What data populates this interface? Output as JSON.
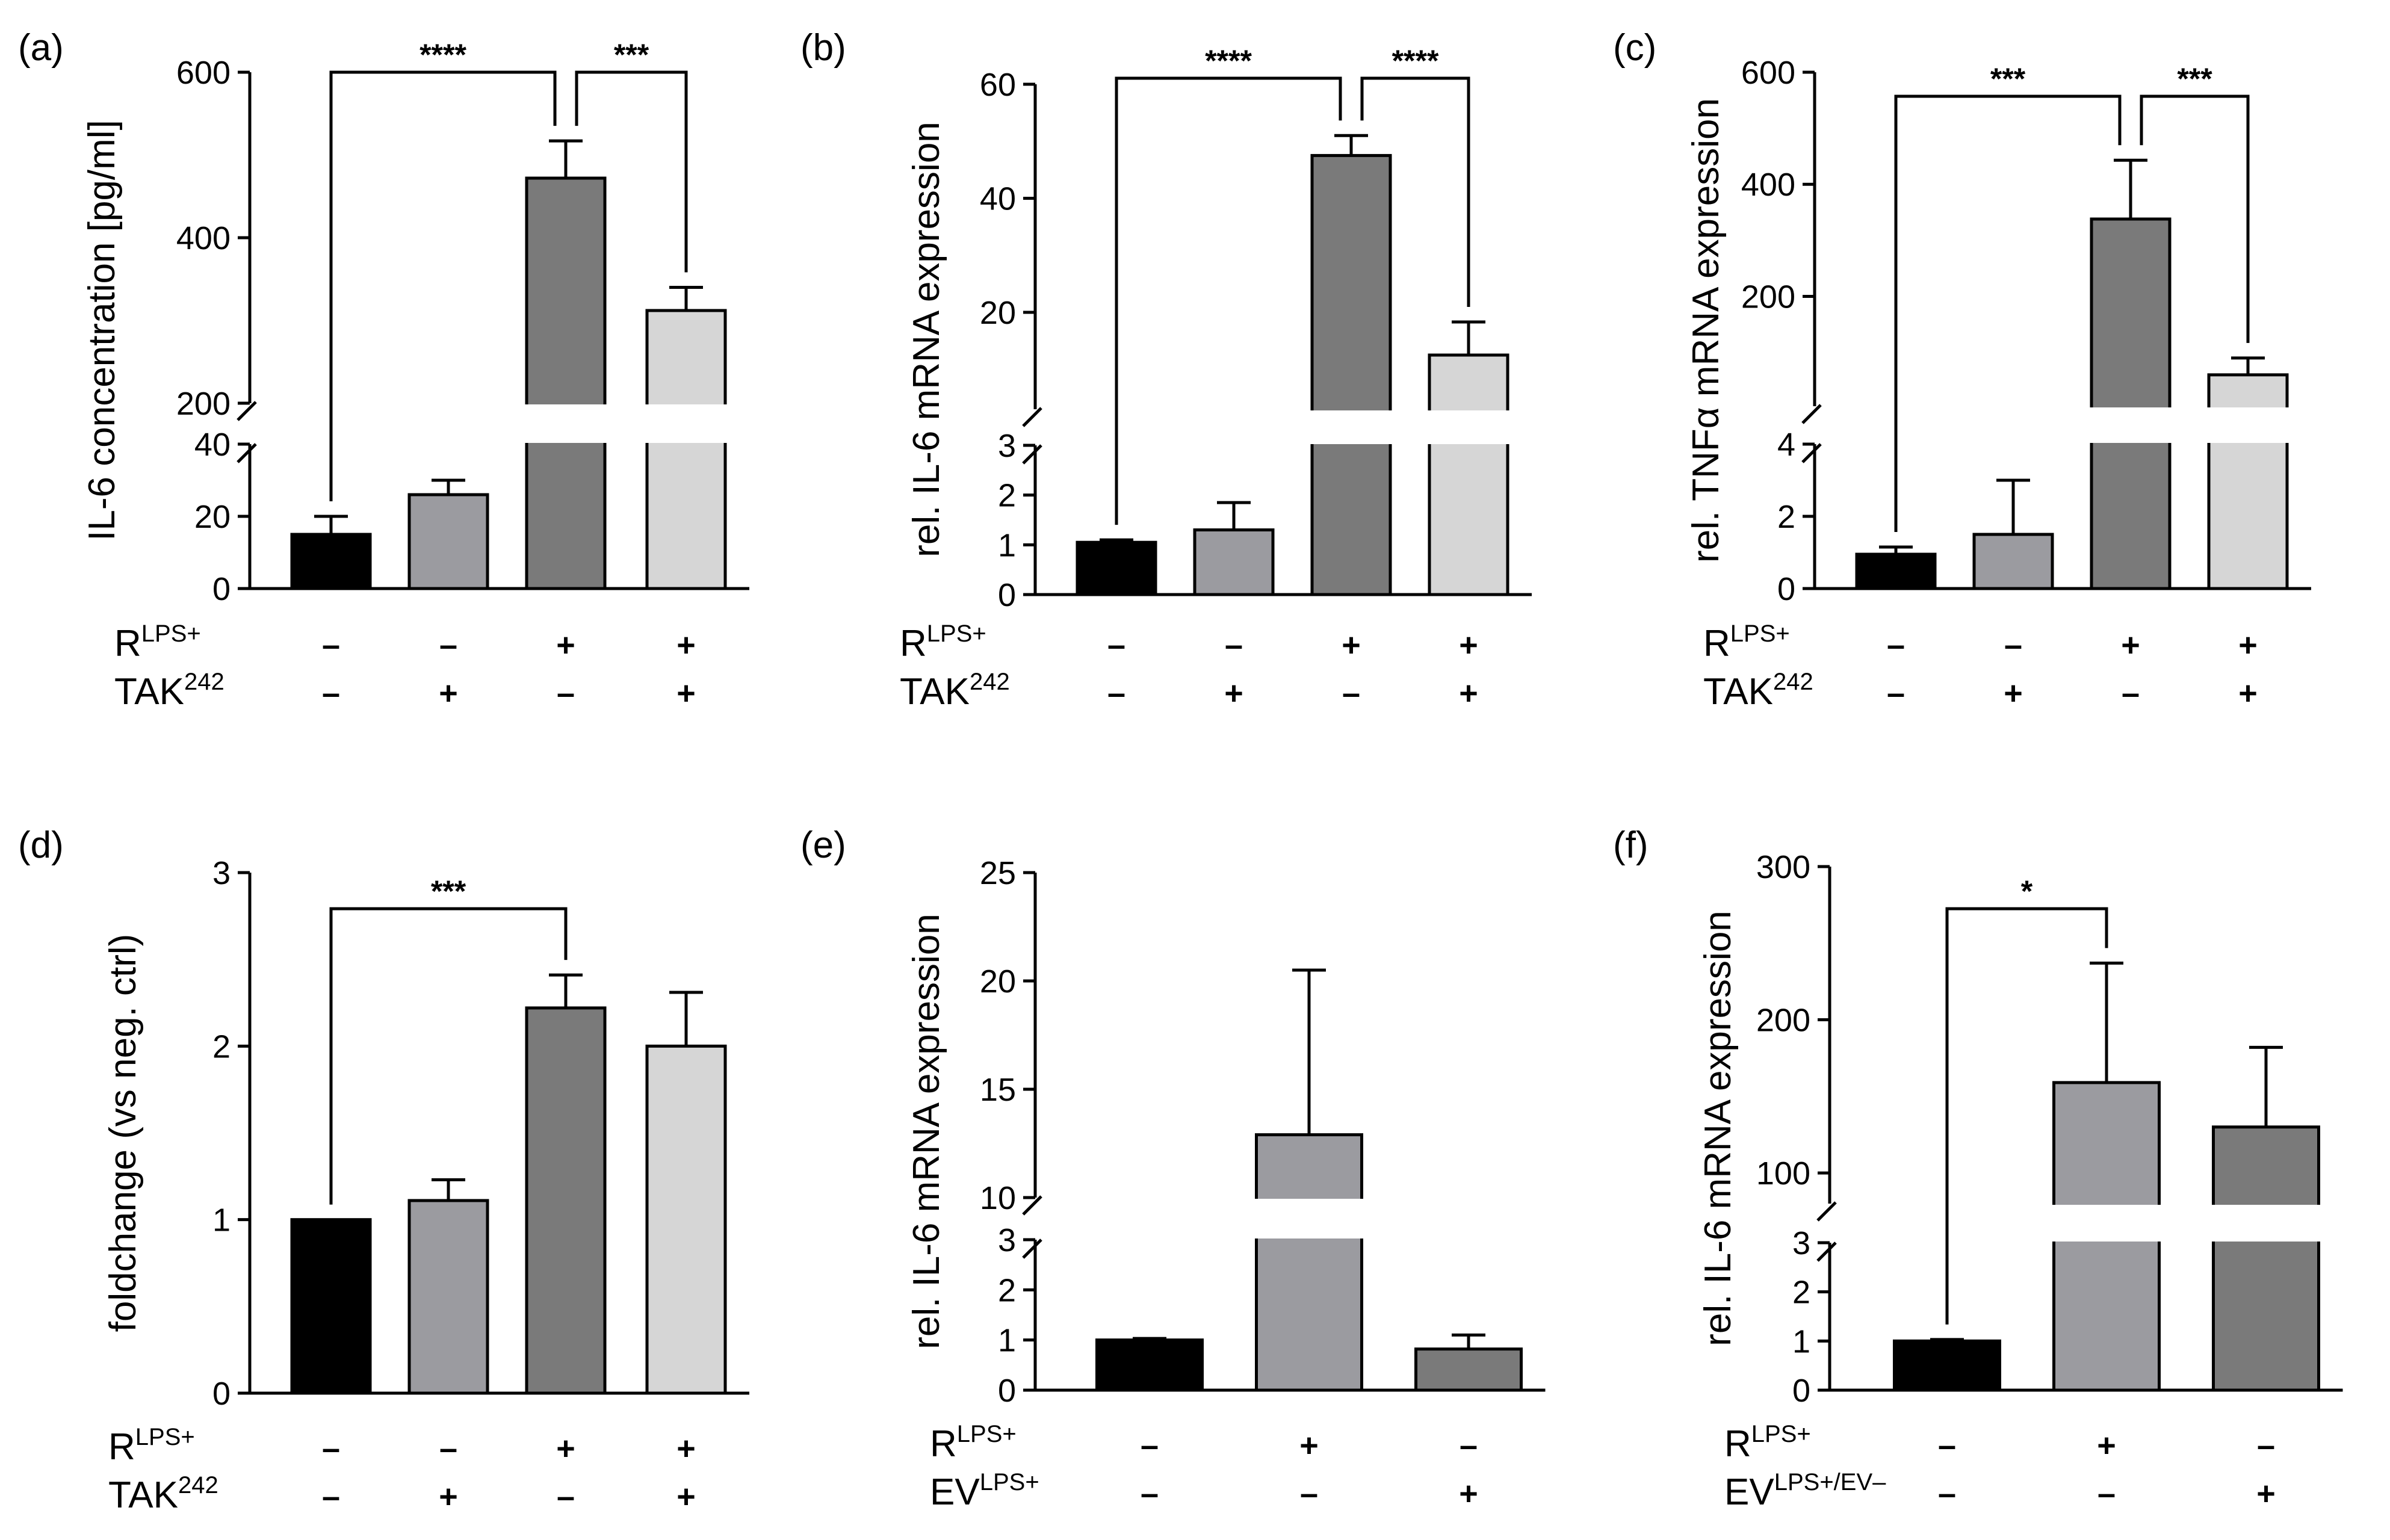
{
  "chart_data": [
    {
      "type": "bar",
      "panel": "(a)",
      "ylabel": "IL-6 concentration [pg/ml]",
      "axis_break": {
        "lower": [
          0,
          40
        ],
        "upper": [
          200,
          600
        ]
      },
      "lower_ticks": [
        "0",
        "20",
        "40"
      ],
      "upper_ticks": [
        "200",
        "400",
        "600"
      ],
      "bars": [
        {
          "value": 15,
          "error": 5,
          "color": "#000000"
        },
        {
          "value": 26,
          "error": 4,
          "color": "#9b9ba0"
        },
        {
          "value": 472,
          "error": 45,
          "color": "#7a7a7a"
        },
        {
          "value": 312,
          "error": 28,
          "color": "#d6d6d6"
        }
      ],
      "rows": [
        {
          "label": "R",
          "sup": "LPS+",
          "values": [
            "–",
            "–",
            "+",
            "+"
          ]
        },
        {
          "label": "TAK",
          "sup": "242",
          "values": [
            "–",
            "+",
            "–",
            "+"
          ]
        }
      ],
      "sig": [
        {
          "from": 0,
          "to": 2,
          "stars": "****"
        },
        {
          "from": 2,
          "to": 3,
          "stars": "***"
        }
      ]
    },
    {
      "type": "bar",
      "panel": "(b)",
      "ylabel": "rel. IL-6 mRNA expression",
      "axis_break": {
        "lower": [
          0,
          3
        ],
        "upper": [
          3,
          60
        ]
      },
      "lower_ticks": [
        "0",
        "1",
        "2",
        "3"
      ],
      "upper_ticks": [
        "20",
        "40",
        "60"
      ],
      "bars": [
        {
          "value": 1.05,
          "error": 0.05,
          "color": "#000000"
        },
        {
          "value": 1.3,
          "error": 0.55,
          "color": "#9b9ba0"
        },
        {
          "value": 47.5,
          "error": 3.5,
          "color": "#7a7a7a"
        },
        {
          "value": 12.5,
          "error": 5.8,
          "color": "#d6d6d6"
        }
      ],
      "rows": [
        {
          "label": "R",
          "sup": "LPS+",
          "values": [
            "–",
            "–",
            "+",
            "+"
          ]
        },
        {
          "label": "TAK",
          "sup": "242",
          "values": [
            "–",
            "+",
            "–",
            "+"
          ]
        }
      ],
      "sig": [
        {
          "from": 0,
          "to": 2,
          "stars": "****"
        },
        {
          "from": 2,
          "to": 3,
          "stars": "****"
        }
      ]
    },
    {
      "type": "bar",
      "panel": "(c)",
      "ylabel": "rel. TNFα mRNA expression",
      "axis_break": {
        "lower": [
          0,
          4
        ],
        "upper": [
          4,
          600
        ]
      },
      "lower_ticks": [
        "0",
        "2",
        "4"
      ],
      "upper_ticks": [
        "200",
        "400",
        "600"
      ],
      "bars": [
        {
          "value": 0.95,
          "error": 0.2,
          "color": "#000000"
        },
        {
          "value": 1.5,
          "error": 1.5,
          "color": "#9b9ba0"
        },
        {
          "value": 338,
          "error": 105,
          "color": "#7a7a7a"
        },
        {
          "value": 60,
          "error": 30,
          "color": "#d6d6d6"
        }
      ],
      "rows": [
        {
          "label": "R",
          "sup": "LPS+",
          "values": [
            "–",
            "–",
            "+",
            "+"
          ]
        },
        {
          "label": "TAK",
          "sup": "242",
          "values": [
            "–",
            "+",
            "–",
            "+"
          ]
        }
      ],
      "sig": [
        {
          "from": 0,
          "to": 2,
          "stars": "***"
        },
        {
          "from": 2,
          "to": 3,
          "stars": "***"
        }
      ]
    },
    {
      "type": "bar",
      "panel": "(d)",
      "ylabel": "foldchange (vs neg. ctrl)",
      "ylim": [
        0,
        3
      ],
      "ticks": [
        "0",
        "1",
        "2",
        "3"
      ],
      "bars": [
        {
          "value": 1.0,
          "error": 0,
          "color": "#000000"
        },
        {
          "value": 1.11,
          "error": 0.12,
          "color": "#9b9ba0"
        },
        {
          "value": 2.22,
          "error": 0.19,
          "color": "#7a7a7a"
        },
        {
          "value": 2.0,
          "error": 0.31,
          "color": "#d6d6d6"
        }
      ],
      "rows": [
        {
          "label": "R",
          "sup": "LPS+",
          "values": [
            "–",
            "–",
            "+",
            "+"
          ]
        },
        {
          "label": "TAK",
          "sup": "242",
          "values": [
            "–",
            "+",
            "–",
            "+"
          ]
        }
      ],
      "sig": [
        {
          "from": 0,
          "to": 2,
          "stars": "***"
        }
      ]
    },
    {
      "type": "bar",
      "panel": "(e)",
      "ylabel": "rel. IL-6 mRNA expression",
      "axis_break": {
        "lower": [
          0,
          3
        ],
        "upper": [
          10,
          25
        ]
      },
      "lower_ticks": [
        "0",
        "1",
        "2",
        "3"
      ],
      "upper_ticks": [
        "10",
        "15",
        "20",
        "25"
      ],
      "bars": [
        {
          "value": 1.0,
          "error": 0.03,
          "color": "#000000"
        },
        {
          "value": 12.9,
          "error": 7.6,
          "color": "#9b9ba0"
        },
        {
          "value": 0.82,
          "error": 0.28,
          "color": "#7a7a7a"
        }
      ],
      "rows": [
        {
          "label": "R",
          "sup": "LPS+",
          "values": [
            "–",
            "+",
            "–"
          ]
        },
        {
          "label": "EV",
          "sup": "LPS+",
          "values": [
            "–",
            "–",
            "+"
          ]
        }
      ],
      "sig": []
    },
    {
      "type": "bar",
      "panel": "(f)",
      "ylabel": "rel. IL-6 mRNA expression",
      "axis_break": {
        "lower": [
          0,
          3
        ],
        "upper": [
          80,
          300
        ]
      },
      "lower_ticks": [
        "0",
        "1",
        "2",
        "3"
      ],
      "upper_ticks": [
        "100",
        "200",
        "300"
      ],
      "bars": [
        {
          "value": 1.0,
          "error": 0.03,
          "color": "#000000"
        },
        {
          "value": 159,
          "error": 78,
          "color": "#9b9ba0"
        },
        {
          "value": 130,
          "error": 52,
          "color": "#7a7a7a"
        }
      ],
      "rows": [
        {
          "label": "R",
          "sup": "LPS+",
          "values": [
            "–",
            "+",
            "–"
          ]
        },
        {
          "label": "EV",
          "sup": "LPS+/EV–",
          "values": [
            "–",
            "–",
            "+"
          ]
        }
      ],
      "sig": [
        {
          "from": 0,
          "to": 1,
          "stars": "*"
        }
      ]
    }
  ]
}
